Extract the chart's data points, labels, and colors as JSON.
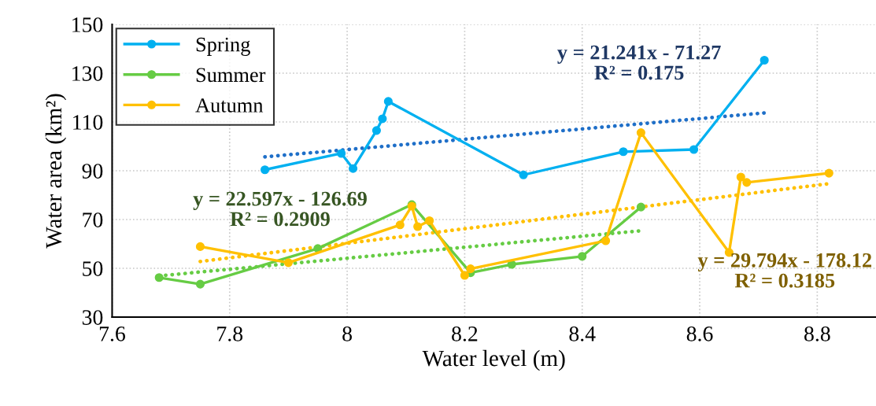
{
  "chart_data": {
    "type": "line",
    "xlabel": "Water level (m)",
    "ylabel": "Water area (km²)",
    "xlim": [
      7.6,
      8.9
    ],
    "xticks": [
      7.6,
      7.8,
      {
        "value": 8.0,
        "label": "8"
      },
      8.2,
      8.4,
      8.6,
      8.8
    ],
    "ylim": [
      30,
      150
    ],
    "yticks": [
      30,
      50,
      70,
      90,
      110,
      130,
      150
    ],
    "grid": true,
    "legend": "top left",
    "marker": "circle",
    "line_style": "solid",
    "series": [
      {
        "name": "Spring",
        "color": "#00b0f0",
        "x": [
          7.86,
          7.99,
          8.01,
          8.05,
          8.06,
          8.07,
          8.3,
          8.47,
          8.59,
          8.71
        ],
        "values": [
          90.4,
          97.1,
          90.9,
          106.5,
          111.3,
          118.4,
          88.3,
          97.8,
          98.7,
          135.3
        ]
      },
      {
        "name": "Summer",
        "color": "#66cc44",
        "x": [
          7.68,
          7.75,
          7.95,
          8.11,
          8.21,
          8.28,
          8.4,
          8.5
        ],
        "values": [
          46.2,
          43.5,
          58.1,
          76.1,
          48.2,
          51.6,
          54.9,
          75.1
        ]
      },
      {
        "name": "Autumn",
        "color": "#ffc000",
        "x": [
          7.75,
          7.9,
          8.09,
          8.11,
          8.12,
          8.14,
          8.2,
          8.21,
          8.44,
          8.5,
          8.65,
          8.67,
          8.68,
          8.82
        ],
        "values": [
          58.9,
          52.3,
          67.8,
          75.5,
          67.1,
          69.5,
          47.1,
          49.8,
          61.3,
          105.6,
          56.5,
          87.4,
          85.2,
          89.0
        ]
      },
      {
        "type": "line",
        "color": "#1f6fc8",
        "marker": "none",
        "line_style": "dotted",
        "x": [
          7.86,
          8.71
        ],
        "values": [
          95.7,
          113.7
        ]
      },
      {
        "type": "line",
        "color": "#66cc44",
        "marker": "none",
        "line_style": "dotted",
        "x": [
          7.68,
          8.5
        ],
        "values": [
          46.9,
          65.4
        ]
      },
      {
        "type": "line",
        "color": "#ffc000",
        "marker": "none",
        "line_style": "dotted",
        "x": [
          7.75,
          8.82
        ],
        "values": [
          52.8,
          84.7
        ]
      }
    ],
    "annotations": [
      "y = 21.241x - 71.27\nR² = 0.175",
      "y = 22.597x - 126.69\nR² = 0.2909",
      "y = 29.794x - 178.12\nR² = 0.3185"
    ]
  }
}
